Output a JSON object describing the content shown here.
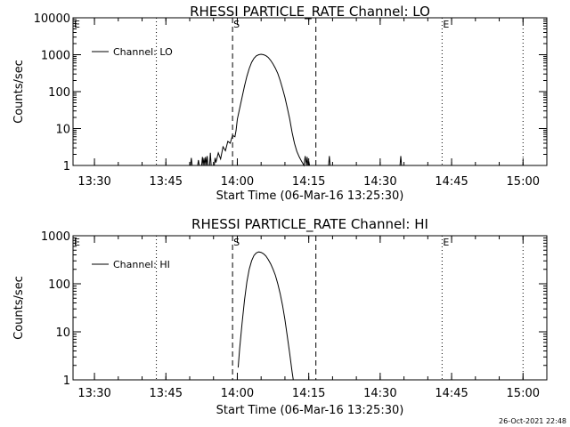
{
  "chart_data": [
    {
      "type": "line",
      "title": "RHESSI PARTICLE_RATE Channel: LO",
      "xlabel": "Start Time (06-Mar-16 13:25:30)",
      "ylabel": "Counts/sec",
      "yscale": "log",
      "ylim": [
        1,
        10000
      ],
      "xlim": [
        "13:25:30",
        "15:05:00"
      ],
      "x_ticks": [
        "13:30",
        "13:45",
        "14:00",
        "14:15",
        "14:30",
        "14:45",
        "15:00"
      ],
      "y_ticks": [
        "1",
        "10",
        "100",
        "1000",
        "10000"
      ],
      "legend": "Channel: LO",
      "markers": [
        {
          "label": "E",
          "time": "13:25:30",
          "style": "dotted"
        },
        {
          "label": "",
          "time": "13:43:00",
          "style": "dotted"
        },
        {
          "label": "S",
          "time": "13:59:00",
          "style": "dashed"
        },
        {
          "label": "",
          "time": "14:16:30",
          "style": "dashed"
        },
        {
          "label": "E",
          "time": "14:43:00",
          "style": "dotted"
        },
        {
          "label": "",
          "time": "15:00:00",
          "style": "dotted"
        }
      ],
      "series": [
        {
          "name": "Channel: LO",
          "points": [
            [
              "13:50:10",
              1
            ],
            [
              "13:50:20",
              1.6
            ],
            [
              "13:50:30",
              1
            ],
            [
              "13:51:40",
              1
            ],
            [
              "13:51:50",
              1.4
            ],
            [
              "13:52:00",
              1
            ],
            [
              "13:52:30",
              1
            ],
            [
              "13:52:40",
              1.7
            ],
            [
              "13:52:50",
              1
            ],
            [
              "13:53:00",
              1.6
            ],
            [
              "13:53:10",
              1
            ],
            [
              "13:53:20",
              1.7
            ],
            [
              "13:53:30",
              1
            ],
            [
              "13:53:40",
              1.8
            ],
            [
              "13:53:50",
              1
            ],
            [
              "13:54:10",
              1
            ],
            [
              "13:54:20",
              2.2
            ],
            [
              "13:54:30",
              1
            ],
            [
              "13:55:10",
              1
            ],
            [
              "13:55:20",
              1.6
            ],
            [
              "13:55:30",
              1.2
            ],
            [
              "13:56:00",
              2.2
            ],
            [
              "13:56:30",
              1.5
            ],
            [
              "13:57:00",
              3.2
            ],
            [
              "13:57:30",
              2.5
            ],
            [
              "13:58:00",
              4.5
            ],
            [
              "13:58:30",
              4
            ],
            [
              "13:59:00",
              6.5
            ],
            [
              "13:59:30",
              6
            ],
            [
              "13:59:45",
              9
            ],
            [
              "14:00:00",
              18
            ],
            [
              "14:00:30",
              35
            ],
            [
              "14:01:00",
              70
            ],
            [
              "14:01:30",
              140
            ],
            [
              "14:02:00",
              260
            ],
            [
              "14:02:30",
              420
            ],
            [
              "14:03:00",
              620
            ],
            [
              "14:03:30",
              800
            ],
            [
              "14:04:00",
              930
            ],
            [
              "14:04:30",
              1000
            ],
            [
              "14:05:00",
              1030
            ],
            [
              "14:05:30",
              1000
            ],
            [
              "14:06:00",
              940
            ],
            [
              "14:06:30",
              840
            ],
            [
              "14:07:00",
              700
            ],
            [
              "14:07:30",
              560
            ],
            [
              "14:08:00",
              430
            ],
            [
              "14:08:30",
              310
            ],
            [
              "14:09:00",
              200
            ],
            [
              "14:09:30",
              120
            ],
            [
              "14:10:00",
              70
            ],
            [
              "14:10:30",
              36
            ],
            [
              "14:11:00",
              18
            ],
            [
              "14:11:30",
              8
            ],
            [
              "14:12:00",
              4
            ],
            [
              "14:12:30",
              2.4
            ],
            [
              "14:13:00",
              1.7
            ],
            [
              "14:13:30",
              1.3
            ],
            [
              "14:14:00",
              1
            ],
            [
              "14:14:15",
              1.8
            ],
            [
              "14:14:30",
              1
            ],
            [
              "14:14:40",
              1.7
            ],
            [
              "14:14:50",
              1
            ],
            [
              "14:15:00",
              1.3
            ],
            [
              "14:15:10",
              1
            ],
            [
              "14:19:10",
              1
            ],
            [
              "14:19:20",
              1.8
            ],
            [
              "14:19:30",
              1
            ],
            [
              "14:34:10",
              1
            ],
            [
              "14:34:20",
              1.8
            ],
            [
              "14:34:30",
              1
            ]
          ]
        }
      ]
    },
    {
      "type": "line",
      "title": "RHESSI PARTICLE_RATE Channel: HI",
      "xlabel": "Start Time (06-Mar-16 13:25:30)",
      "ylabel": "Counts/sec",
      "yscale": "log",
      "ylim": [
        1,
        1000
      ],
      "xlim": [
        "13:25:30",
        "15:05:00"
      ],
      "x_ticks": [
        "13:30",
        "13:45",
        "14:00",
        "14:15",
        "14:30",
        "14:45",
        "15:00"
      ],
      "y_ticks": [
        "1",
        "10",
        "100",
        "1000"
      ],
      "legend": "Channel: HI",
      "markers": [
        {
          "label": "E",
          "time": "13:25:30",
          "style": "dotted"
        },
        {
          "label": "",
          "time": "13:43:00",
          "style": "dotted"
        },
        {
          "label": "S",
          "time": "13:59:00",
          "style": "dashed"
        },
        {
          "label": "",
          "time": "14:16:30",
          "style": "dashed"
        },
        {
          "label": "E",
          "time": "14:43:00",
          "style": "dotted"
        },
        {
          "label": "",
          "time": "15:00:00",
          "style": "dotted"
        }
      ],
      "series": [
        {
          "name": "Channel: HI",
          "points": [
            [
              "14:00:10",
              1.8
            ],
            [
              "14:00:30",
              4.5
            ],
            [
              "14:01:00",
              15
            ],
            [
              "14:01:30",
              45
            ],
            [
              "14:02:00",
              110
            ],
            [
              "14:02:30",
              200
            ],
            [
              "14:03:00",
              300
            ],
            [
              "14:03:30",
              390
            ],
            [
              "14:04:00",
              440
            ],
            [
              "14:04:30",
              460
            ],
            [
              "14:05:00",
              450
            ],
            [
              "14:05:30",
              420
            ],
            [
              "14:06:00",
              380
            ],
            [
              "14:06:30",
              320
            ],
            [
              "14:07:00",
              260
            ],
            [
              "14:07:30",
              200
            ],
            [
              "14:08:00",
              150
            ],
            [
              "14:08:30",
              100
            ],
            [
              "14:09:00",
              62
            ],
            [
              "14:09:30",
              35
            ],
            [
              "14:10:00",
              18
            ],
            [
              "14:10:30",
              8
            ],
            [
              "14:11:00",
              3.5
            ],
            [
              "14:11:30",
              1.5
            ],
            [
              "14:11:45",
              1
            ]
          ]
        }
      ]
    }
  ],
  "footer": {
    "timestamp": "26-Oct-2021 22:48"
  }
}
